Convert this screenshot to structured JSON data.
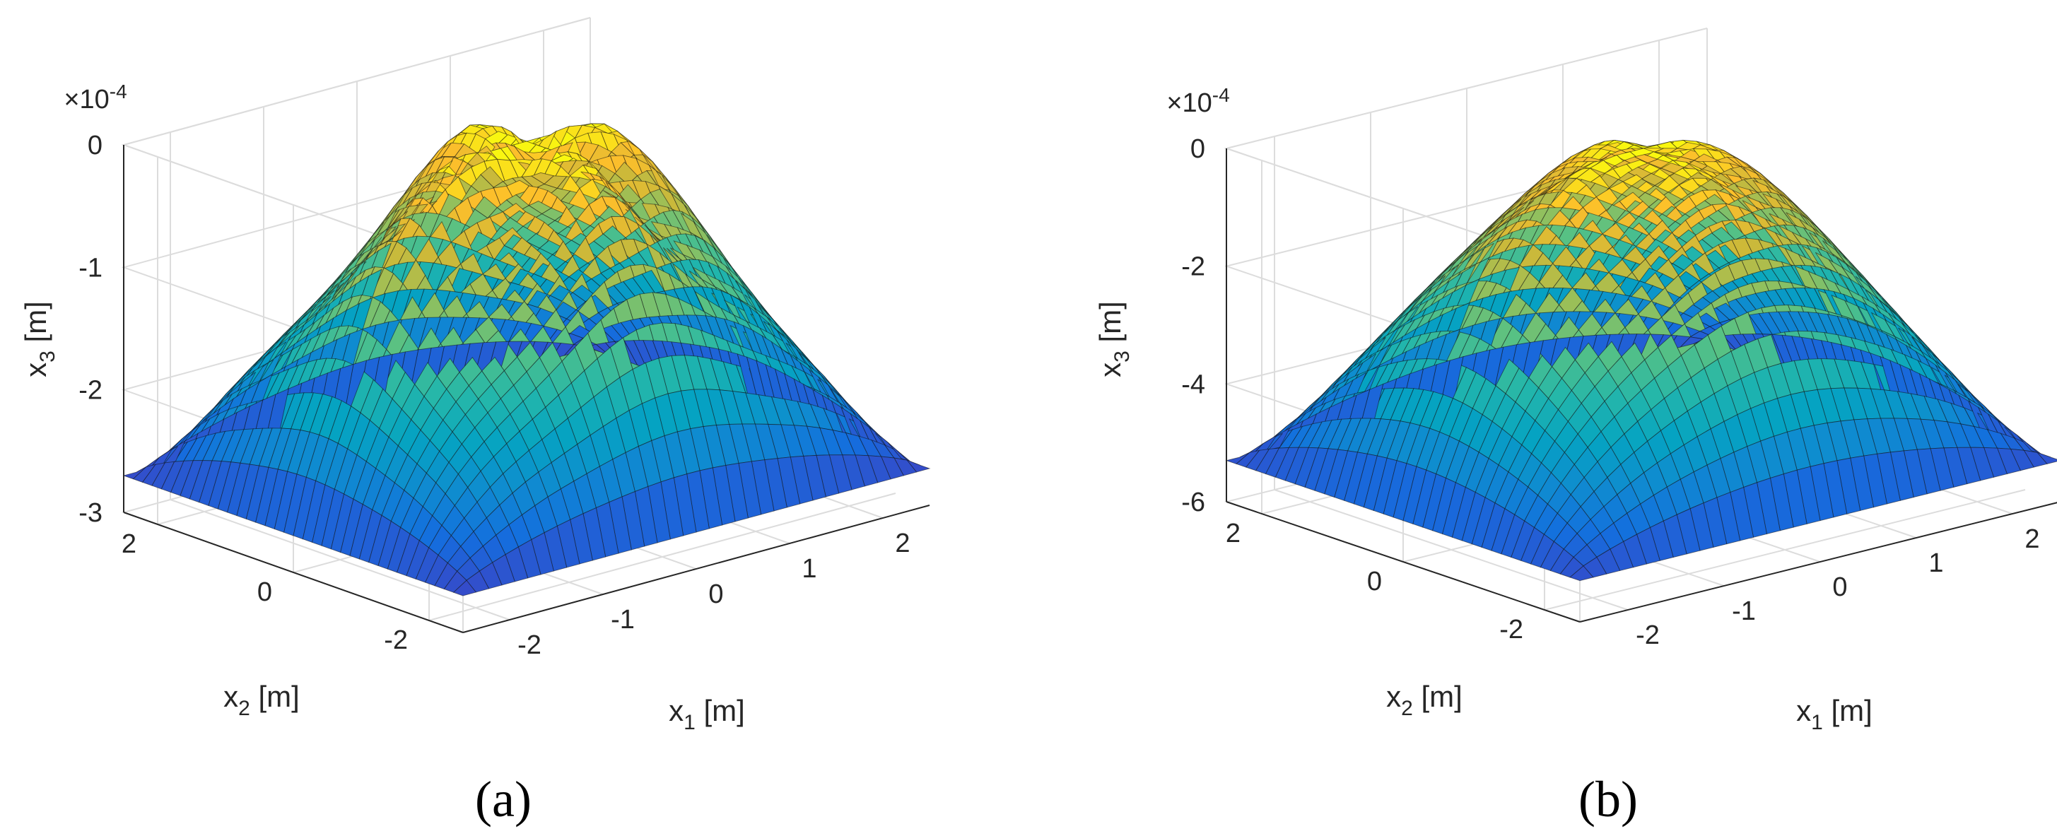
{
  "chart_data": [
    {
      "type": "surface",
      "caption": "(a)",
      "exponent_label": "×10",
      "exponent_power": "-4",
      "xlabel": "x",
      "xlabel_sub": "1",
      "xlabel_unit": " [m]",
      "ylabel": "x",
      "ylabel_sub": "2",
      "ylabel_unit": " [m]",
      "zlabel": "x",
      "zlabel_sub": "3",
      "zlabel_unit": " [m]",
      "x_range": [
        -2.5,
        2.5
      ],
      "y_range": [
        -2.5,
        2.5
      ],
      "z_range": [
        -3,
        0
      ],
      "x_ticks": [
        "-2",
        "-1",
        "0",
        "1",
        "2"
      ],
      "y_ticks": [
        "-2",
        "0",
        "2"
      ],
      "z_ticks": [
        "-3",
        "-2",
        "-1",
        "0"
      ],
      "z_values": {
        "center_peak": 0,
        "edge_minimum": -2.7,
        "unit_scale": "1e-4"
      },
      "colormap": "parula",
      "grid": true
    },
    {
      "type": "surface",
      "caption": "(b)",
      "exponent_label": "×10",
      "exponent_power": "-4",
      "xlabel": "x",
      "xlabel_sub": "1",
      "xlabel_unit": " [m]",
      "ylabel": "x",
      "ylabel_sub": "2",
      "ylabel_unit": " [m]",
      "zlabel": "x",
      "zlabel_sub": "3",
      "zlabel_unit": " [m]",
      "x_range": [
        -2.5,
        2.5
      ],
      "y_range": [
        -2.5,
        2.5
      ],
      "z_range": [
        -6,
        0
      ],
      "x_ticks": [
        "-2",
        "-1",
        "0",
        "1",
        "2"
      ],
      "y_ticks": [
        "-2",
        "0",
        "2"
      ],
      "z_ticks": [
        "-6",
        "-4",
        "-2",
        "0"
      ],
      "z_values": {
        "center_peak": 0,
        "edge_minimum": -5.3,
        "unit_scale": "1e-4"
      },
      "colormap": "parula",
      "grid": true
    }
  ]
}
